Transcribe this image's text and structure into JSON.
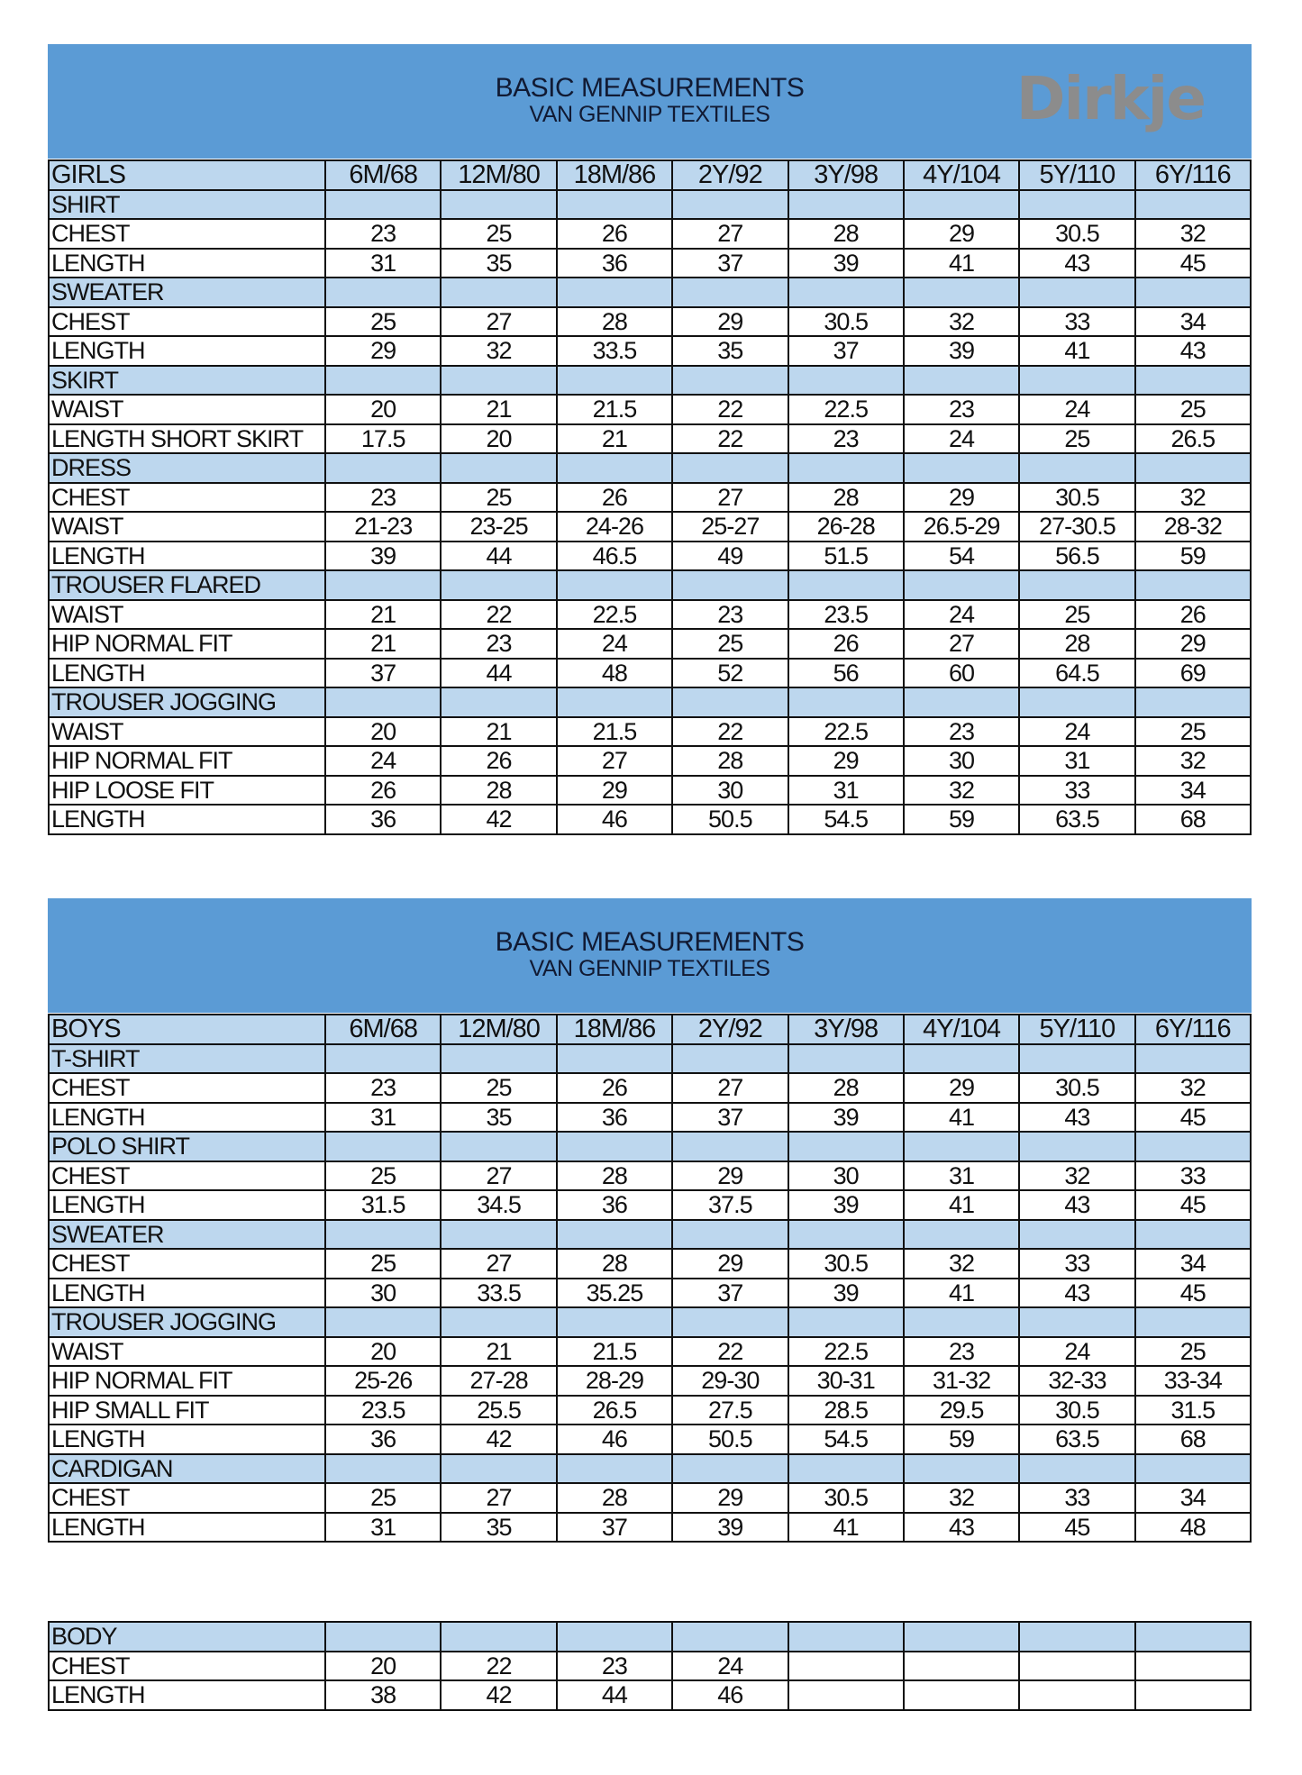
{
  "colors": {
    "band": "#5b9bd5",
    "section": "#bdd7ee"
  },
  "logo": "Dirkje",
  "girls": {
    "title": "BASIC MEASUREMENTS",
    "subtitle": "VAN GENNIP TEXTILES",
    "header": [
      "GIRLS",
      "6M/68",
      "12M/80",
      "18M/86",
      "2Y/92",
      "3Y/98",
      "4Y/104",
      "5Y/110",
      "6Y/116"
    ],
    "rows": [
      {
        "section": "SHIRT"
      },
      {
        "label": "CHEST",
        "values": [
          "23",
          "25",
          "26",
          "27",
          "28",
          "29",
          "30.5",
          "32"
        ]
      },
      {
        "label": "LENGTH",
        "values": [
          "31",
          "35",
          "36",
          "37",
          "39",
          "41",
          "43",
          "45"
        ]
      },
      {
        "section": "SWEATER"
      },
      {
        "label": "CHEST",
        "values": [
          "25",
          "27",
          "28",
          "29",
          "30.5",
          "32",
          "33",
          "34"
        ]
      },
      {
        "label": "LENGTH",
        "values": [
          "29",
          "32",
          "33.5",
          "35",
          "37",
          "39",
          "41",
          "43"
        ]
      },
      {
        "section": "SKIRT"
      },
      {
        "label": "WAIST",
        "values": [
          "20",
          "21",
          "21.5",
          "22",
          "22.5",
          "23",
          "24",
          "25"
        ]
      },
      {
        "label": "LENGTH SHORT SKIRT",
        "values": [
          "17.5",
          "20",
          "21",
          "22",
          "23",
          "24",
          "25",
          "26.5"
        ]
      },
      {
        "section": "DRESS"
      },
      {
        "label": "CHEST",
        "values": [
          "23",
          "25",
          "26",
          "27",
          "28",
          "29",
          "30.5",
          "32"
        ]
      },
      {
        "label": "WAIST",
        "values": [
          "21-23",
          "23-25",
          "24-26",
          "25-27",
          "26-28",
          "26.5-29",
          "27-30.5",
          "28-32"
        ]
      },
      {
        "label": "LENGTH",
        "values": [
          "39",
          "44",
          "46.5",
          "49",
          "51.5",
          "54",
          "56.5",
          "59"
        ]
      },
      {
        "section": "TROUSER FLARED"
      },
      {
        "label": "WAIST",
        "values": [
          "21",
          "22",
          "22.5",
          "23",
          "23.5",
          "24",
          "25",
          "26"
        ]
      },
      {
        "label": "HIP NORMAL FIT",
        "values": [
          "21",
          "23",
          "24",
          "25",
          "26",
          "27",
          "28",
          "29"
        ]
      },
      {
        "label": "LENGTH",
        "values": [
          "37",
          "44",
          "48",
          "52",
          "56",
          "60",
          "64.5",
          "69"
        ]
      },
      {
        "section": "TROUSER JOGGING"
      },
      {
        "label": "WAIST",
        "values": [
          "20",
          "21",
          "21.5",
          "22",
          "22.5",
          "23",
          "24",
          "25"
        ]
      },
      {
        "label": "HIP NORMAL FIT",
        "values": [
          "24",
          "26",
          "27",
          "28",
          "29",
          "30",
          "31",
          "32"
        ]
      },
      {
        "label": "HIP LOOSE FIT",
        "values": [
          "26",
          "28",
          "29",
          "30",
          "31",
          "32",
          "33",
          "34"
        ]
      },
      {
        "label": "LENGTH",
        "values": [
          "36",
          "42",
          "46",
          "50.5",
          "54.5",
          "59",
          "63.5",
          "68"
        ]
      }
    ]
  },
  "boys": {
    "title": "BASIC MEASUREMENTS",
    "subtitle": "VAN GENNIP TEXTILES",
    "header": [
      "BOYS",
      "6M/68",
      "12M/80",
      "18M/86",
      "2Y/92",
      "3Y/98",
      "4Y/104",
      "5Y/110",
      "6Y/116"
    ],
    "rows": [
      {
        "section": "T-SHIRT"
      },
      {
        "label": "CHEST",
        "values": [
          "23",
          "25",
          "26",
          "27",
          "28",
          "29",
          "30.5",
          "32"
        ]
      },
      {
        "label": "LENGTH",
        "values": [
          "31",
          "35",
          "36",
          "37",
          "39",
          "41",
          "43",
          "45"
        ]
      },
      {
        "section": "POLO SHIRT"
      },
      {
        "label": "CHEST",
        "values": [
          "25",
          "27",
          "28",
          "29",
          "30",
          "31",
          "32",
          "33"
        ]
      },
      {
        "label": "LENGTH",
        "values": [
          "31.5",
          "34.5",
          "36",
          "37.5",
          "39",
          "41",
          "43",
          "45"
        ]
      },
      {
        "section": "SWEATER"
      },
      {
        "label": "CHEST",
        "values": [
          "25",
          "27",
          "28",
          "29",
          "30.5",
          "32",
          "33",
          "34"
        ]
      },
      {
        "label": "LENGTH",
        "values": [
          "30",
          "33.5",
          "35.25",
          "37",
          "39",
          "41",
          "43",
          "45"
        ]
      },
      {
        "section": "TROUSER JOGGING"
      },
      {
        "label": "WAIST",
        "values": [
          "20",
          "21",
          "21.5",
          "22",
          "22.5",
          "23",
          "24",
          "25"
        ]
      },
      {
        "label": "HIP NORMAL FIT",
        "values": [
          "25-26",
          "27-28",
          "28-29",
          "29-30",
          "30-31",
          "31-32",
          "32-33",
          "33-34"
        ]
      },
      {
        "label": "HIP SMALL FIT",
        "values": [
          "23.5",
          "25.5",
          "26.5",
          "27.5",
          "28.5",
          "29.5",
          "30.5",
          "31.5"
        ]
      },
      {
        "label": "LENGTH",
        "values": [
          "36",
          "42",
          "46",
          "50.5",
          "54.5",
          "59",
          "63.5",
          "68"
        ]
      },
      {
        "section": "CARDIGAN"
      },
      {
        "label": "CHEST",
        "values": [
          "25",
          "27",
          "28",
          "29",
          "30.5",
          "32",
          "33",
          "34"
        ]
      },
      {
        "label": "LENGTH",
        "values": [
          "31",
          "35",
          "37",
          "39",
          "41",
          "43",
          "45",
          "48"
        ]
      }
    ]
  },
  "body": {
    "rows": [
      {
        "section": "BODY"
      },
      {
        "label": "CHEST",
        "values": [
          "20",
          "22",
          "23",
          "24",
          "",
          "",
          "",
          ""
        ]
      },
      {
        "label": "LENGTH",
        "values": [
          "38",
          "42",
          "44",
          "46",
          "",
          "",
          "",
          ""
        ]
      }
    ]
  }
}
